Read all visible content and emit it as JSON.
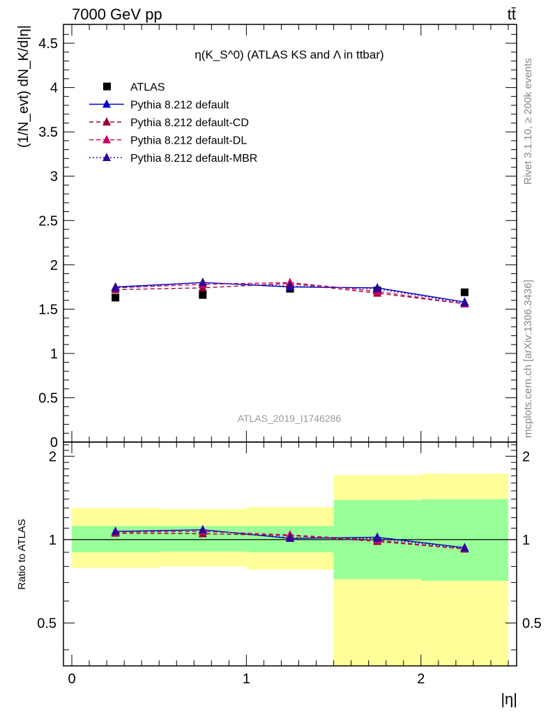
{
  "header": {
    "left": "7000 GeV pp",
    "right": "tt̄"
  },
  "side_labels": {
    "rivet": "Rivet 3.1.10, ≥ 200k events",
    "mcplots": "mcplots.cern.ch [arXiv:1306.3436]"
  },
  "analysis_id": "ATLAS_2019_I1746286",
  "colors": {
    "data": "#000000",
    "pythia_default": "#0000cc",
    "pythia_cd": "#990033",
    "pythia_dl": "#cc0066",
    "pythia_mbr": "#330099",
    "band_inner": "#99ff99",
    "band_outer": "#ffff99"
  },
  "chart_data": [
    {
      "type": "scatter",
      "title": "η(K_S^0) (ATLAS KS and Λ in ttbar)",
      "xlabel": "|η|",
      "ylabel": "(1/N_evt) dN_K/d|η|",
      "xlim": [
        0,
        2.5
      ],
      "ylim": [
        0,
        4.7
      ],
      "yticks": [
        "0",
        "0.5",
        "1",
        "1.5",
        "2",
        "2.5",
        "3",
        "3.5",
        "4",
        "4.5"
      ],
      "legend_position": "top-left",
      "x": [
        0.25,
        0.75,
        1.25,
        1.75,
        2.25
      ],
      "series": [
        {
          "name": "ATLAS",
          "marker": "square",
          "values": [
            1.63,
            1.66,
            1.73,
            1.71,
            1.69
          ]
        },
        {
          "name": "Pythia 8.212 default",
          "style": "solid",
          "marker": "triangle",
          "values": [
            1.75,
            1.8,
            1.75,
            1.74,
            1.58
          ]
        },
        {
          "name": "Pythia 8.212 default-CD",
          "style": "dashed",
          "marker": "triangle",
          "values": [
            1.72,
            1.74,
            1.79,
            1.68,
            1.56
          ]
        },
        {
          "name": "Pythia 8.212 default-DL",
          "style": "dashed",
          "marker": "triangle",
          "values": [
            1.74,
            1.78,
            1.8,
            1.7,
            1.56
          ]
        },
        {
          "name": "Pythia 8.212 default-MBR",
          "style": "dotted",
          "marker": "triangle",
          "values": [
            1.74,
            1.8,
            1.76,
            1.73,
            1.57
          ]
        }
      ]
    },
    {
      "type": "line",
      "ylabel": "Ratio to ATLAS",
      "xlabel": "|η|",
      "xlim": [
        0,
        2.5
      ],
      "ylim": [
        0.35,
        2.25
      ],
      "log_y": true,
      "xticks": [
        "0",
        "1",
        "2"
      ],
      "yticks": [
        "0.5",
        "1",
        "2"
      ],
      "x": [
        0.25,
        0.75,
        1.25,
        1.75,
        2.25
      ],
      "bins": [
        [
          0,
          0.5
        ],
        [
          0.5,
          1.0
        ],
        [
          1.0,
          1.5
        ],
        [
          1.5,
          2.0
        ],
        [
          2.0,
          2.5
        ]
      ],
      "band_inner": {
        "low": [
          0.9,
          0.905,
          0.9,
          0.72,
          0.71
        ],
        "high": [
          1.12,
          1.12,
          1.12,
          1.39,
          1.4
        ]
      },
      "band_outer": {
        "low": [
          0.79,
          0.8,
          0.78,
          0.35,
          0.35
        ],
        "high": [
          1.3,
          1.29,
          1.31,
          1.71,
          1.73
        ]
      },
      "series": [
        {
          "name": "Pythia 8.212 default",
          "values": [
            1.07,
            1.085,
            1.01,
            1.02,
            0.935
          ]
        },
        {
          "name": "Pythia 8.212 default-CD",
          "values": [
            1.055,
            1.05,
            1.035,
            0.985,
            0.925
          ]
        },
        {
          "name": "Pythia 8.212 default-DL",
          "values": [
            1.065,
            1.07,
            1.04,
            0.995,
            0.925
          ]
        },
        {
          "name": "Pythia 8.212 default-MBR",
          "values": [
            1.07,
            1.085,
            1.015,
            1.01,
            0.93
          ]
        }
      ]
    }
  ]
}
